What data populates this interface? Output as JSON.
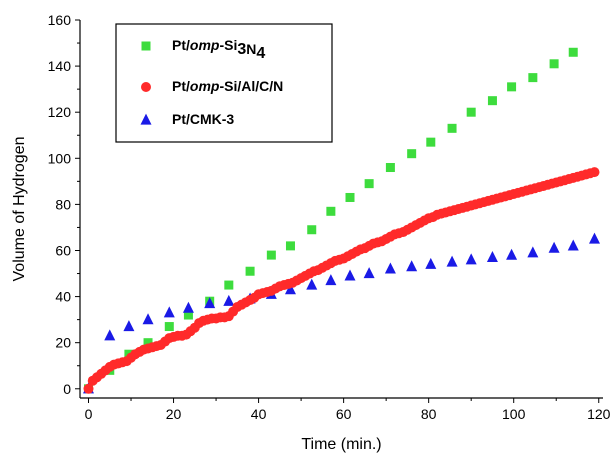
{
  "chart_data": {
    "type": "scatter",
    "xlabel": "Time (min.)",
    "ylabel": "Volume of Hydrogen",
    "xlim": [
      -2,
      121
    ],
    "ylim": [
      -4,
      160
    ],
    "xticks": [
      0,
      20,
      40,
      60,
      80,
      100,
      120
    ],
    "yticks": [
      0,
      20,
      40,
      60,
      80,
      100,
      120,
      140,
      160
    ],
    "grid": false,
    "legend_position": "top-left",
    "series": [
      {
        "name_parts": [
          {
            "t": "Pt/"
          },
          {
            "t": "omp",
            "italic": true
          },
          {
            "t": "-Si"
          },
          {
            "t": "3",
            "sub": true
          },
          {
            "t": "N"
          },
          {
            "t": "4",
            "sub": true
          }
        ],
        "marker": "square",
        "color": "#3ddc3d",
        "x": [
          0,
          5,
          9.5,
          14,
          19,
          23.5,
          28.5,
          33,
          38,
          43,
          47.5,
          52.5,
          57,
          61.5,
          66,
          71,
          76,
          80.5,
          85.5,
          90,
          95,
          99.5,
          104.5,
          109.5,
          114
        ],
        "y": [
          0,
          8,
          15,
          20,
          27,
          32,
          38,
          45,
          51,
          58,
          62,
          69,
          77,
          83,
          89,
          96,
          102,
          107,
          113,
          120,
          125,
          131,
          135,
          141,
          146
        ]
      },
      {
        "name_parts": [
          {
            "t": "Pt/"
          },
          {
            "t": "omp",
            "italic": true
          },
          {
            "t": "-Si/Al/C/N"
          }
        ],
        "marker": "circle",
        "color": "#ff2a2a",
        "x": [
          0,
          1,
          2,
          3,
          4,
          5,
          6,
          7,
          8,
          9,
          10,
          11,
          12,
          13,
          14,
          15,
          16,
          17,
          18,
          19,
          20,
          21,
          22,
          23,
          24,
          25,
          26,
          27,
          28,
          29,
          30,
          31,
          32,
          33,
          34,
          35,
          36,
          37,
          38,
          39,
          40,
          41,
          42,
          43,
          44,
          45,
          46,
          47,
          48,
          49,
          50,
          51,
          52,
          53,
          54,
          55,
          56,
          57,
          58,
          59,
          60,
          61,
          62,
          63,
          64,
          65,
          66,
          67,
          68,
          69,
          70,
          71,
          72,
          73,
          74,
          75,
          76,
          77,
          78,
          79,
          80,
          81,
          82,
          83,
          84,
          85,
          86,
          87,
          88,
          89,
          90,
          91,
          92,
          93,
          94,
          95,
          96,
          97,
          98,
          99,
          100,
          101,
          102,
          103,
          104,
          105,
          106,
          107,
          108,
          109,
          110,
          111,
          112,
          113,
          114,
          115,
          116,
          117,
          118,
          119
        ],
        "y": [
          0,
          3.5,
          5,
          6.5,
          8,
          9.5,
          10.5,
          11,
          11.5,
          12,
          13.5,
          15,
          16,
          17,
          17.5,
          18,
          18.5,
          19,
          20.5,
          22,
          22.5,
          23,
          23,
          23.5,
          25,
          26.5,
          28.5,
          29.5,
          30,
          30.5,
          30.5,
          31,
          31,
          31.5,
          33.5,
          35.5,
          36.5,
          37.5,
          38.5,
          39.5,
          41,
          41.5,
          42,
          42.5,
          43.5,
          44.5,
          45,
          45.5,
          46,
          47,
          48,
          49,
          50,
          51,
          51.5,
          52.5,
          53.5,
          54.5,
          55.5,
          56,
          56.5,
          57.5,
          58.5,
          59.5,
          60.5,
          61,
          62,
          63,
          63.5,
          64,
          65,
          66,
          67,
          67.5,
          68,
          69,
          70,
          71,
          72,
          73,
          74,
          74.5,
          75.5,
          76,
          76.5,
          77,
          77.5,
          78,
          78.5,
          79,
          79.5,
          80,
          80.5,
          81,
          81.5,
          82,
          82.5,
          83,
          83.5,
          84,
          84.5,
          85,
          85.5,
          86,
          86.5,
          87,
          87.5,
          88,
          88.5,
          89,
          89.5,
          90,
          90.5,
          91,
          91.5,
          92,
          92.5,
          93,
          93.5,
          94
        ]
      },
      {
        "name_parts": [
          {
            "t": "Pt/CMK-3"
          }
        ],
        "marker": "triangle",
        "color": "#1a1ae6",
        "x": [
          0,
          5,
          9.5,
          14,
          19,
          23.5,
          28.5,
          33,
          38,
          43,
          47.5,
          52.5,
          57,
          61.5,
          66,
          71,
          76,
          80.5,
          85.5,
          90,
          95,
          99.5,
          104.5,
          109.5,
          114,
          119
        ],
        "y": [
          0,
          23,
          27,
          30,
          33,
          35,
          37,
          38,
          39,
          41,
          43,
          45,
          47,
          49,
          50,
          52,
          53,
          54,
          55,
          56,
          57,
          58,
          59,
          61,
          62,
          65
        ]
      }
    ]
  }
}
